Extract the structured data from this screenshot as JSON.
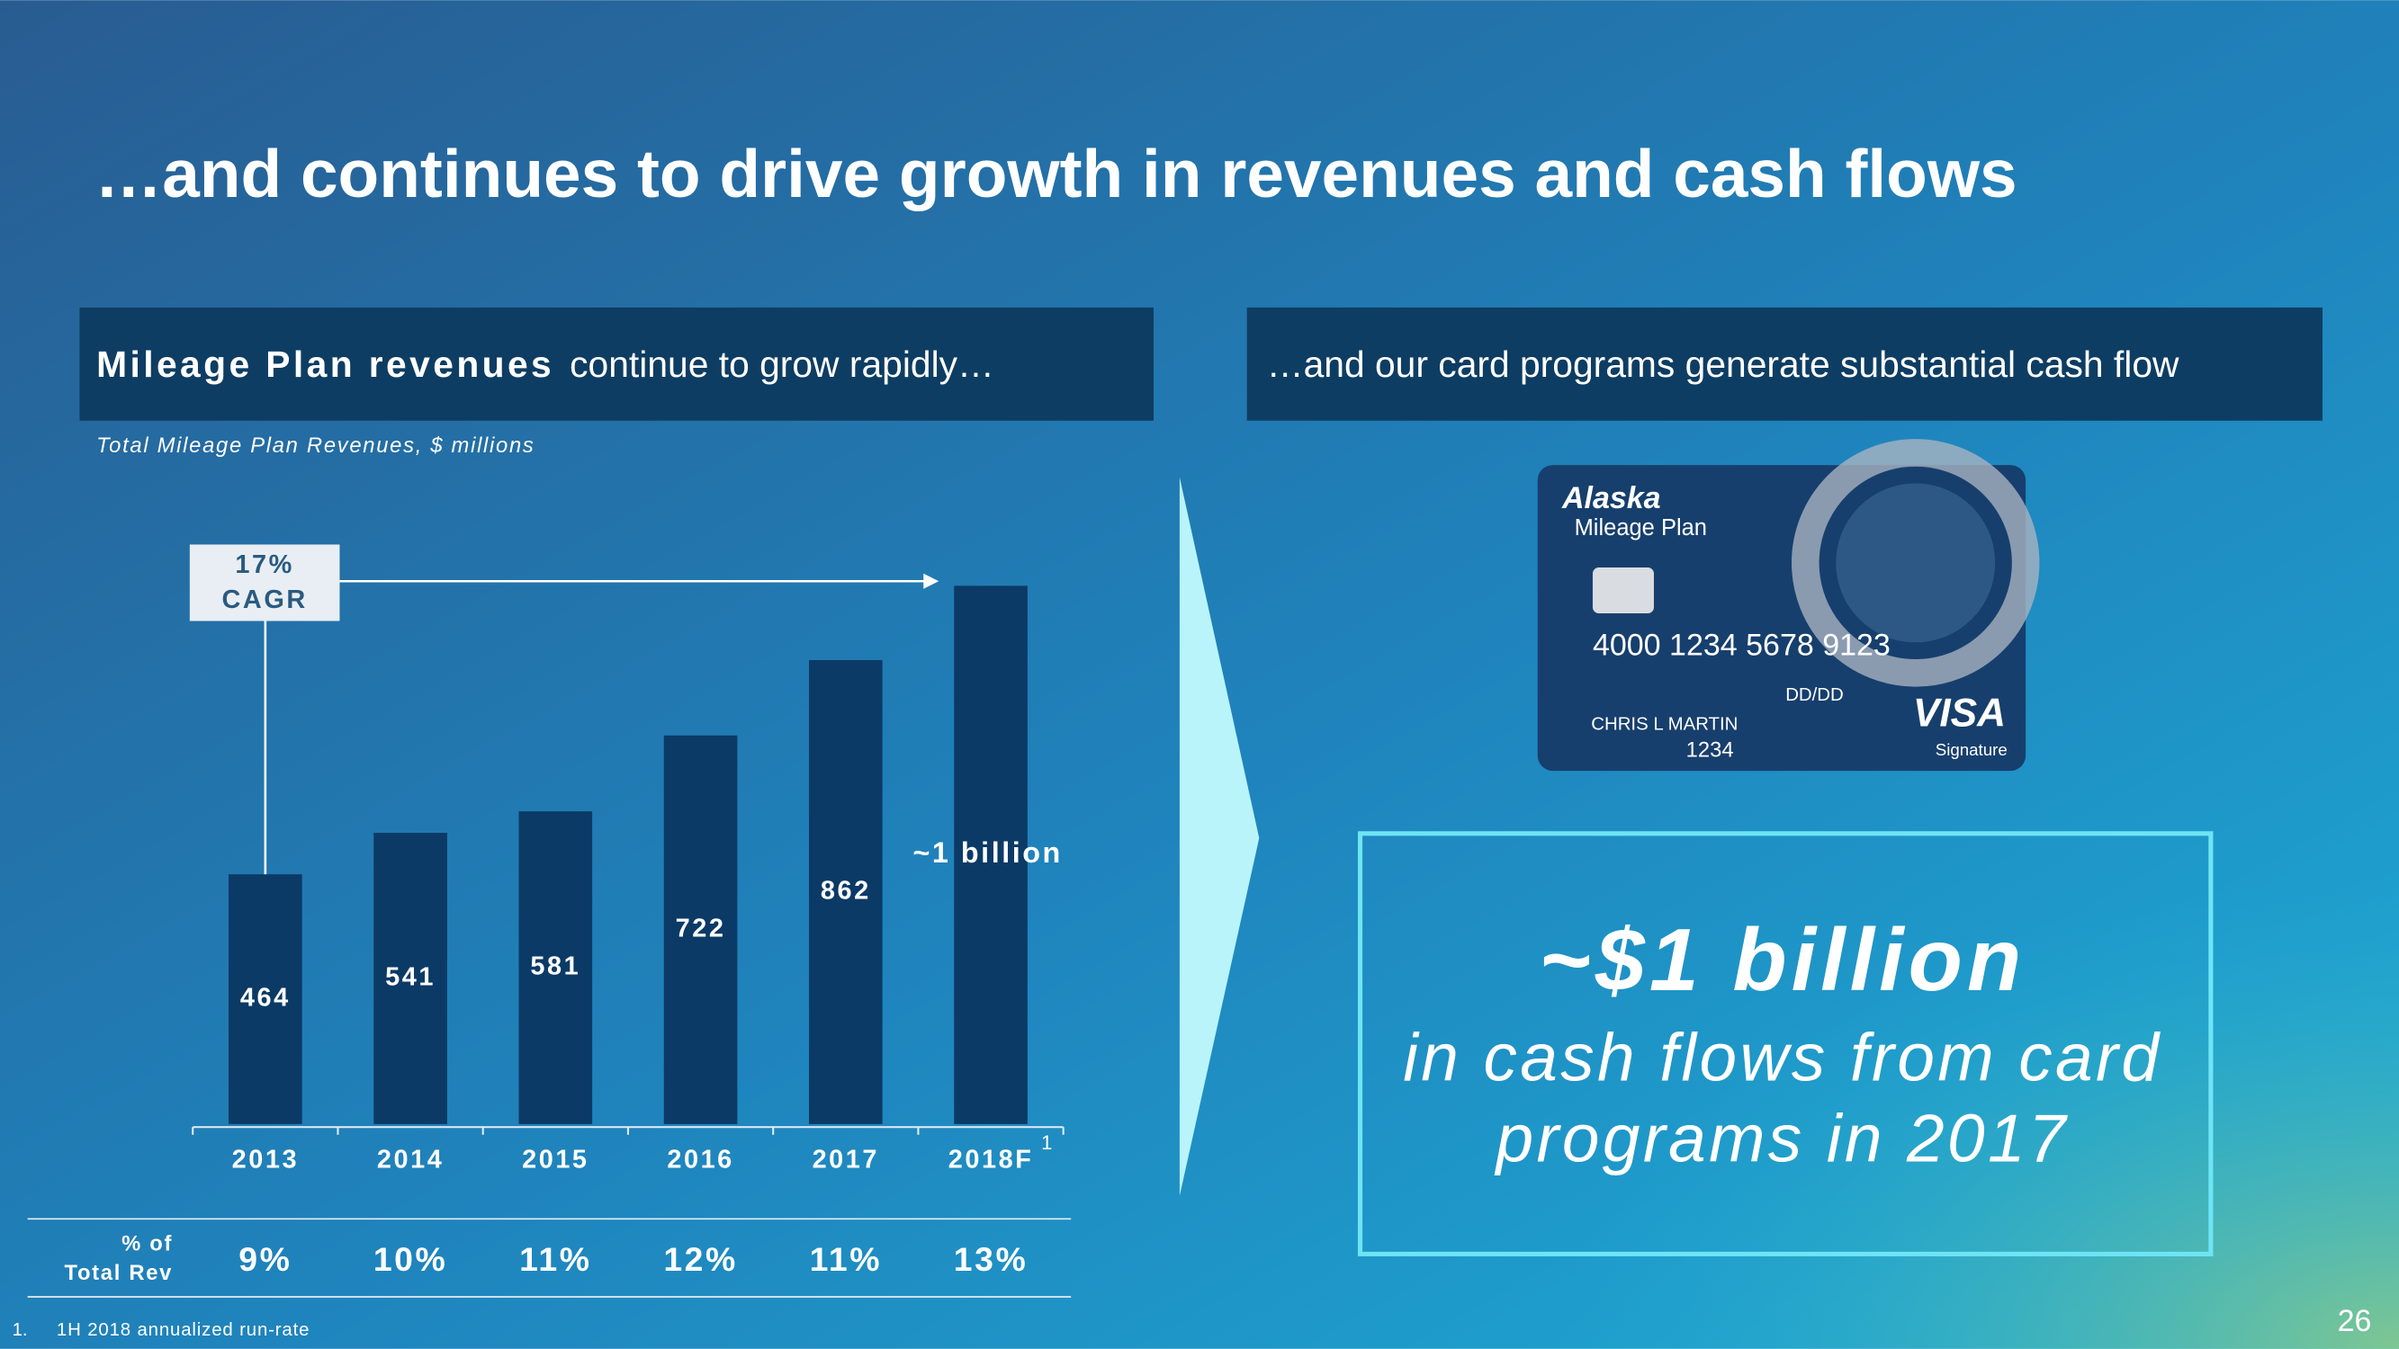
{
  "title": "…and continues to drive growth in revenues and cash flows",
  "left_header": {
    "bold": "Mileage Plan revenues",
    "rest": "continue to grow rapidly…"
  },
  "right_header": "…and our card programs generate substantial cash flow",
  "chart_data": {
    "type": "bar",
    "subtitle": "Total Mileage Plan Revenues, $ millions",
    "categories": [
      "2013",
      "2014",
      "2015",
      "2016",
      "2017",
      "2018F"
    ],
    "values": [
      464,
      541,
      581,
      722,
      862,
      1000
    ],
    "value_labels": [
      "464",
      "541",
      "581",
      "722",
      "862",
      "~1 billion"
    ],
    "color": "#0b3a66",
    "cagr": [
      "17%",
      "CAGR"
    ],
    "share_label": [
      "% of",
      "Total Rev"
    ],
    "share_values": [
      "9%",
      "10%",
      "11%",
      "12%",
      "11%",
      "13%"
    ]
  },
  "footnote": {
    "marker": "1",
    "number": "1.",
    "text": "1H 2018 annualized run-rate"
  },
  "card": {
    "brand": "Alaska",
    "program": "Mileage Plan",
    "number": "4000 1234 5678 9123",
    "expiry": "DD/DD",
    "holder": "CHRIS L MARTIN",
    "code": "1234",
    "network": "VISA",
    "tier": "Signature"
  },
  "callout": {
    "headline": "~$1 billion",
    "line1": "in cash flows from card",
    "line2": "programs in 2017"
  },
  "page_number": "26"
}
